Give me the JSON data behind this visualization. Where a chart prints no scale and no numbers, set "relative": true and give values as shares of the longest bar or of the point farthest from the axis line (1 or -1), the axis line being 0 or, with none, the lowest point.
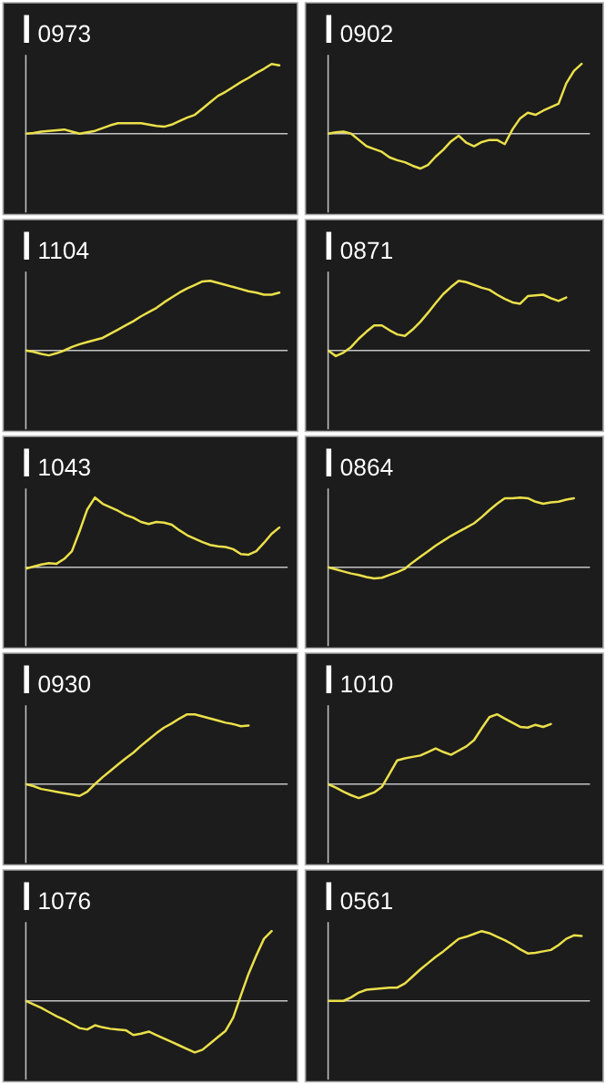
{
  "chart_data": [
    {
      "type": "line",
      "title": "0973",
      "relative": true,
      "color": "#ebe04a",
      "categories": [
        null,
        null,
        null,
        null,
        null,
        null,
        null,
        null,
        null,
        null,
        null,
        null,
        null,
        null,
        null,
        null,
        null,
        null,
        null,
        null,
        null,
        null,
        null,
        null,
        null,
        null,
        null,
        null,
        null,
        null,
        null,
        null,
        null,
        null,
        null
      ],
      "values": [
        0,
        0.01,
        0.03,
        0.04,
        0.05,
        0.06,
        0.03,
        0,
        0.02,
        0.04,
        0.08,
        0.12,
        0.15,
        0.15,
        0.15,
        0.15,
        0.13,
        0.11,
        0.1,
        0.13,
        0.18,
        0.23,
        0.27,
        0.36,
        0.45,
        0.54,
        0.6,
        0.67,
        0.74,
        0.8,
        0.87,
        0.93,
        1,
        0.98,
        null
      ]
    },
    {
      "type": "line",
      "title": "0902",
      "relative": true,
      "color": "#ebe04a",
      "categories": [
        null,
        null,
        null,
        null,
        null,
        null,
        null,
        null,
        null,
        null,
        null,
        null,
        null,
        null,
        null,
        null,
        null,
        null,
        null,
        null,
        null,
        null,
        null,
        null,
        null,
        null,
        null,
        null,
        null,
        null,
        null,
        null,
        null,
        null,
        null
      ],
      "values": [
        0,
        0.02,
        0.03,
        0,
        -0.09,
        -0.18,
        -0.22,
        -0.26,
        -0.34,
        -0.38,
        -0.41,
        -0.46,
        -0.5,
        -0.45,
        -0.33,
        -0.23,
        -0.11,
        -0.03,
        -0.13,
        -0.18,
        -0.12,
        -0.09,
        -0.09,
        -0.15,
        0.06,
        0.22,
        0.3,
        0.27,
        0.33,
        0.38,
        0.43,
        0.72,
        0.9,
        1,
        null
      ]
    },
    {
      "type": "line",
      "title": "1104",
      "relative": true,
      "color": "#ebe04a",
      "categories": [
        null,
        null,
        null,
        null,
        null,
        null,
        null,
        null,
        null,
        null,
        null,
        null,
        null,
        null,
        null,
        null,
        null,
        null,
        null,
        null,
        null,
        null,
        null,
        null,
        null,
        null,
        null,
        null,
        null,
        null,
        null,
        null,
        null,
        null,
        null
      ],
      "values": [
        0,
        -0.02,
        -0.05,
        -0.07,
        -0.04,
        0,
        0.05,
        0.09,
        0.12,
        0.15,
        0.18,
        0.24,
        0.3,
        0.36,
        0.42,
        0.49,
        0.55,
        0.61,
        0.69,
        0.76,
        0.83,
        0.89,
        0.94,
        0.99,
        1,
        0.97,
        0.94,
        0.91,
        0.88,
        0.85,
        0.83,
        0.8,
        0.8,
        0.83,
        null
      ]
    },
    {
      "type": "line",
      "title": "0871",
      "relative": true,
      "color": "#ebe04a",
      "categories": [
        null,
        null,
        null,
        null,
        null,
        null,
        null,
        null,
        null,
        null,
        null,
        null,
        null,
        null,
        null,
        null,
        null,
        null,
        null,
        null,
        null,
        null,
        null,
        null,
        null,
        null,
        null,
        null,
        null,
        null,
        null,
        null,
        null,
        null,
        null
      ],
      "values": [
        0,
        -0.08,
        -0.03,
        0.05,
        0.17,
        0.27,
        0.36,
        0.36,
        0.29,
        0.23,
        0.21,
        0.3,
        0.41,
        0.54,
        0.68,
        0.81,
        0.91,
        1,
        0.98,
        0.94,
        0.9,
        0.87,
        0.8,
        0.74,
        0.69,
        0.67,
        0.78,
        0.79,
        0.8,
        0.75,
        0.71,
        0.76,
        null,
        null,
        null
      ]
    },
    {
      "type": "line",
      "title": "1043",
      "relative": true,
      "color": "#ebe04a",
      "categories": [
        null,
        null,
        null,
        null,
        null,
        null,
        null,
        null,
        null,
        null,
        null,
        null,
        null,
        null,
        null,
        null,
        null,
        null,
        null,
        null,
        null,
        null,
        null,
        null,
        null,
        null,
        null,
        null,
        null,
        null,
        null,
        null,
        null,
        null,
        null
      ],
      "values": [
        -0.02,
        0.01,
        0.04,
        0.06,
        0.05,
        0.12,
        0.23,
        0.52,
        0.83,
        1,
        0.91,
        0.86,
        0.81,
        0.75,
        0.71,
        0.65,
        0.62,
        0.65,
        0.64,
        0.61,
        0.53,
        0.46,
        0.41,
        0.36,
        0.32,
        0.3,
        0.29,
        0.26,
        0.19,
        0.18,
        0.23,
        0.35,
        0.48,
        0.57,
        null
      ]
    },
    {
      "type": "line",
      "title": "0864",
      "relative": true,
      "color": "#ebe04a",
      "categories": [
        null,
        null,
        null,
        null,
        null,
        null,
        null,
        null,
        null,
        null,
        null,
        null,
        null,
        null,
        null,
        null,
        null,
        null,
        null,
        null,
        null,
        null,
        null,
        null,
        null,
        null,
        null,
        null,
        null,
        null,
        null,
        null,
        null,
        null,
        null
      ],
      "values": [
        0,
        -0.03,
        -0.06,
        -0.09,
        -0.11,
        -0.14,
        -0.16,
        -0.15,
        -0.11,
        -0.07,
        -0.02,
        0.07,
        0.15,
        0.23,
        0.31,
        0.38,
        0.45,
        0.51,
        0.57,
        0.63,
        0.72,
        0.82,
        0.91,
        0.99,
        0.99,
        1,
        0.99,
        0.94,
        0.91,
        0.93,
        0.94,
        0.97,
        0.99,
        null,
        null
      ]
    },
    {
      "type": "line",
      "title": "0930",
      "relative": true,
      "color": "#ebe04a",
      "categories": [
        null,
        null,
        null,
        null,
        null,
        null,
        null,
        null,
        null,
        null,
        null,
        null,
        null,
        null,
        null,
        null,
        null,
        null,
        null,
        null,
        null,
        null,
        null,
        null,
        null,
        null,
        null,
        null,
        null,
        null,
        null,
        null,
        null,
        null,
        null
      ],
      "values": [
        0,
        -0.03,
        -0.07,
        -0.09,
        -0.11,
        -0.13,
        -0.15,
        -0.17,
        -0.11,
        0,
        0.1,
        0.19,
        0.28,
        0.37,
        0.45,
        0.55,
        0.64,
        0.73,
        0.81,
        0.87,
        0.94,
        1,
        1,
        0.97,
        0.94,
        0.91,
        0.88,
        0.86,
        0.83,
        0.84,
        null,
        null,
        null,
        null,
        null
      ]
    },
    {
      "type": "line",
      "title": "1010",
      "relative": true,
      "color": "#ebe04a",
      "categories": [
        null,
        null,
        null,
        null,
        null,
        null,
        null,
        null,
        null,
        null,
        null,
        null,
        null,
        null,
        null,
        null,
        null,
        null,
        null,
        null,
        null,
        null,
        null,
        null,
        null,
        null,
        null,
        null,
        null,
        null,
        null,
        null,
        null,
        null,
        null
      ],
      "values": [
        0,
        -0.05,
        -0.11,
        -0.16,
        -0.2,
        -0.16,
        -0.12,
        -0.04,
        0.15,
        0.34,
        0.37,
        0.39,
        0.41,
        0.46,
        0.51,
        0.46,
        0.42,
        0.48,
        0.54,
        0.63,
        0.8,
        0.96,
        1,
        0.94,
        0.88,
        0.82,
        0.81,
        0.85,
        0.82,
        0.86,
        null,
        null,
        null,
        null,
        null
      ]
    },
    {
      "type": "line",
      "title": "1076",
      "relative": true,
      "color": "#ebe04a",
      "categories": [
        null,
        null,
        null,
        null,
        null,
        null,
        null,
        null,
        null,
        null,
        null,
        null,
        null,
        null,
        null,
        null,
        null,
        null,
        null,
        null,
        null,
        null,
        null,
        null,
        null,
        null,
        null,
        null,
        null,
        null,
        null,
        null,
        null,
        null,
        null
      ],
      "values": [
        0,
        -0.05,
        -0.1,
        -0.16,
        -0.22,
        -0.27,
        -0.33,
        -0.39,
        -0.41,
        -0.35,
        -0.38,
        -0.4,
        -0.41,
        -0.42,
        -0.49,
        -0.47,
        -0.44,
        -0.49,
        -0.54,
        -0.59,
        -0.64,
        -0.69,
        -0.74,
        -0.7,
        -0.61,
        -0.52,
        -0.43,
        -0.24,
        0.08,
        0.39,
        0.65,
        0.89,
        1,
        null,
        null
      ]
    },
    {
      "type": "line",
      "title": "0561",
      "relative": true,
      "color": "#ebe04a",
      "categories": [
        null,
        null,
        null,
        null,
        null,
        null,
        null,
        null,
        null,
        null,
        null,
        null,
        null,
        null,
        null,
        null,
        null,
        null,
        null,
        null,
        null,
        null,
        null,
        null,
        null,
        null,
        null,
        null,
        null,
        null,
        null,
        null,
        null,
        null,
        null
      ],
      "values": [
        0,
        0,
        0,
        0.05,
        0.12,
        0.16,
        0.17,
        0.18,
        0.19,
        0.19,
        0.25,
        0.35,
        0.45,
        0.54,
        0.63,
        0.71,
        0.8,
        0.89,
        0.92,
        0.96,
        1,
        0.97,
        0.92,
        0.87,
        0.81,
        0.74,
        0.68,
        0.69,
        0.71,
        0.73,
        0.8,
        0.89,
        0.94,
        0.93,
        null
      ]
    }
  ]
}
